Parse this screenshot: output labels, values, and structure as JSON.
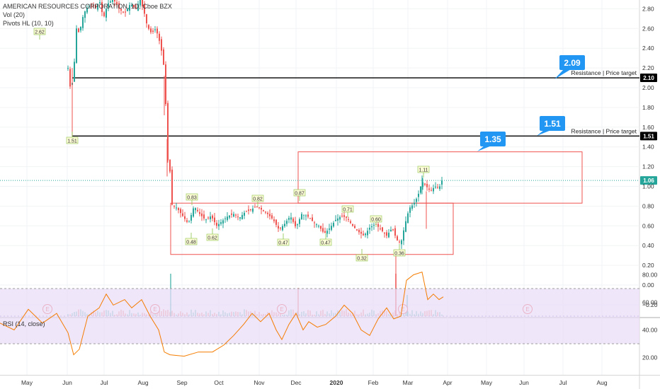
{
  "header": {
    "symbol_line": "AMERICAN RESOURCES CORPORATION, 1D, Cboe BZX",
    "vol_line": "Vol (20)",
    "pivots_line": "Pivots HL (10, 10)",
    "rsi_line": "RSI (14, close)"
  },
  "chart_data": {
    "type": "candlestick",
    "price_axis": {
      "ticks": [
        "2.80",
        "2.60",
        "2.40",
        "2.20",
        "2.00",
        "1.80",
        "1.60",
        "1.40",
        "1.20",
        "1.00",
        "0.80",
        "0.60",
        "0.40",
        "0.20",
        "0.00",
        "−0.20"
      ],
      "ylim": [
        -0.3,
        2.92
      ]
    },
    "rsi_axis": {
      "ticks": [
        "80.00",
        "60.00",
        "40.00",
        "20.00"
      ],
      "ylim": [
        10,
        88
      ],
      "band": [
        30,
        70
      ]
    },
    "time_axis": [
      "May",
      "Jun",
      "Jul",
      "Aug",
      "Sep",
      "Oct",
      "Nov",
      "Dec",
      "2020",
      "Feb",
      "Mar",
      "Apr",
      "May",
      "Jun",
      "Jul",
      "Aug"
    ],
    "price_badges": [
      {
        "value": 2.1,
        "label": "2.10",
        "style": "dark"
      },
      {
        "value": 1.51,
        "label": "1.51",
        "style": "dark"
      },
      {
        "value": 1.06,
        "label": "1.06",
        "style": "green"
      }
    ],
    "horizontal_lines": [
      {
        "value": 2.1,
        "color": "#000000"
      },
      {
        "value": 1.51,
        "color": "#000000"
      },
      {
        "value": 1.06,
        "color": "#26a69a",
        "dotted": true
      }
    ],
    "resistance_annotations": [
      {
        "value": 2.1,
        "text": "Resistance | Price target"
      },
      {
        "value": 1.51,
        "text": "Resistance | Price target"
      }
    ],
    "callouts": [
      {
        "label": "2.09",
        "value": 2.09
      },
      {
        "label": "1.51",
        "value": 1.51
      },
      {
        "label": "1.35",
        "value": 1.35
      }
    ],
    "rectangles": [
      {
        "from": "Aug 2019",
        "to": "Mar 2020",
        "low": 0.31,
        "high": 0.83,
        "color": "#ef5350"
      },
      {
        "from": "Dec 2019",
        "to": "Jun 2020",
        "low": 0.83,
        "high": 1.35,
        "color": "#ef5350"
      }
    ],
    "pivot_labels": [
      {
        "label": "2.62",
        "kind": "high"
      },
      {
        "label": "1.51",
        "kind": "low"
      },
      {
        "label": "0.83",
        "kind": "high"
      },
      {
        "label": "0.48",
        "kind": "low"
      },
      {
        "label": "0.62",
        "kind": "low"
      },
      {
        "label": "0.82",
        "kind": "high"
      },
      {
        "label": "0.47",
        "kind": "low"
      },
      {
        "label": "0.87",
        "kind": "high"
      },
      {
        "label": "0.47",
        "kind": "low"
      },
      {
        "label": "0.71",
        "kind": "high"
      },
      {
        "label": "0.60",
        "kind": "high"
      },
      {
        "label": "0.32",
        "kind": "low"
      },
      {
        "label": "0.36",
        "kind": "low"
      },
      {
        "label": "1.11",
        "kind": "high"
      }
    ],
    "earnings_marker": "E",
    "colors": {
      "up": "#26a69a",
      "down": "#ef5350",
      "rsi_line": "#f57c00",
      "rsi_band": "#e8dcf8",
      "callout": "#2196f3",
      "pivot_box": "#fbfbd6"
    }
  }
}
